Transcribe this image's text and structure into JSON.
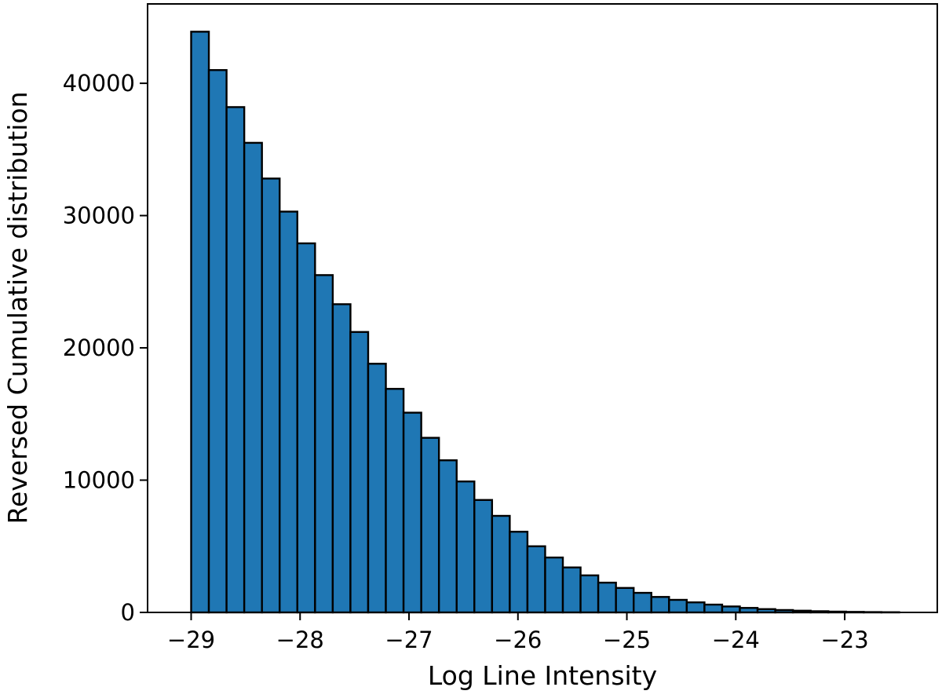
{
  "chart_data": {
    "type": "bar",
    "title": "",
    "xlabel": "Log Line Intensity",
    "ylabel": "Reversed Cumulative distribution",
    "bar_color": "#1f77b4",
    "edge_color": "#000000",
    "xlim": [
      -29.4,
      -22.15
    ],
    "ylim": [
      0,
      46000
    ],
    "xticks": [
      -29,
      -28,
      -27,
      -26,
      -25,
      -24,
      -23
    ],
    "xtick_labels": [
      "−29",
      "−28",
      "−27",
      "−26",
      "−25",
      "−24",
      "−23"
    ],
    "yticks": [
      0,
      10000,
      20000,
      30000,
      40000
    ],
    "ytick_labels": [
      "0",
      "10000",
      "20000",
      "30000",
      "40000"
    ],
    "grid": false,
    "legend": "none",
    "bin_start": -29.0,
    "bin_width": 0.1625,
    "values": [
      43900,
      41000,
      38200,
      35500,
      32800,
      30300,
      27900,
      25500,
      23300,
      21200,
      18800,
      16900,
      15100,
      13200,
      11500,
      9900,
      8500,
      7300,
      6100,
      5000,
      4150,
      3400,
      2800,
      2250,
      1850,
      1480,
      1170,
      950,
      760,
      590,
      450,
      340,
      250,
      180,
      130,
      90,
      60,
      40,
      25,
      15
    ]
  }
}
